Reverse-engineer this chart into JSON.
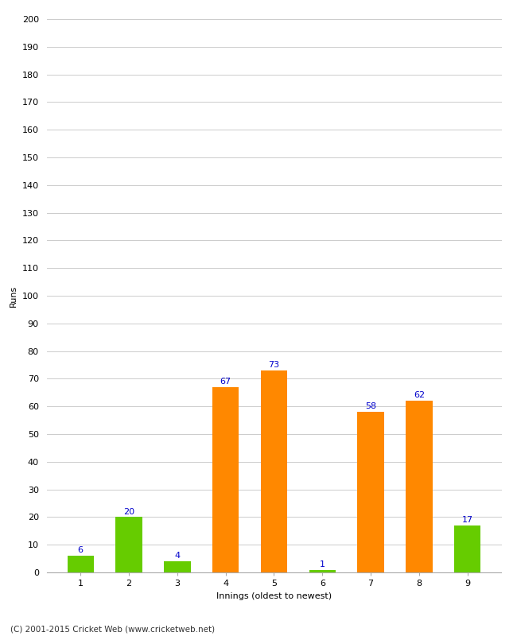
{
  "innings": [
    1,
    2,
    3,
    4,
    5,
    6,
    7,
    8,
    9
  ],
  "values": [
    6,
    20,
    4,
    67,
    73,
    1,
    58,
    62,
    17
  ],
  "colors": [
    "#66cc00",
    "#66cc00",
    "#66cc00",
    "#ff8800",
    "#ff8800",
    "#66cc00",
    "#ff8800",
    "#ff8800",
    "#66cc00"
  ],
  "ylabel": "Runs",
  "xlabel": "Innings (oldest to newest)",
  "ylim": [
    0,
    200
  ],
  "yticks": [
    0,
    10,
    20,
    30,
    40,
    50,
    60,
    70,
    80,
    90,
    100,
    110,
    120,
    130,
    140,
    150,
    160,
    170,
    180,
    190,
    200
  ],
  "footnote": "(C) 2001-2015 Cricket Web (www.cricketweb.net)",
  "label_color": "#0000cc",
  "label_fontsize": 8,
  "bar_width": 0.55,
  "background_color": "#ffffff",
  "grid_color": "#cccccc",
  "axis_label_fontsize": 8,
  "tick_fontsize": 8
}
